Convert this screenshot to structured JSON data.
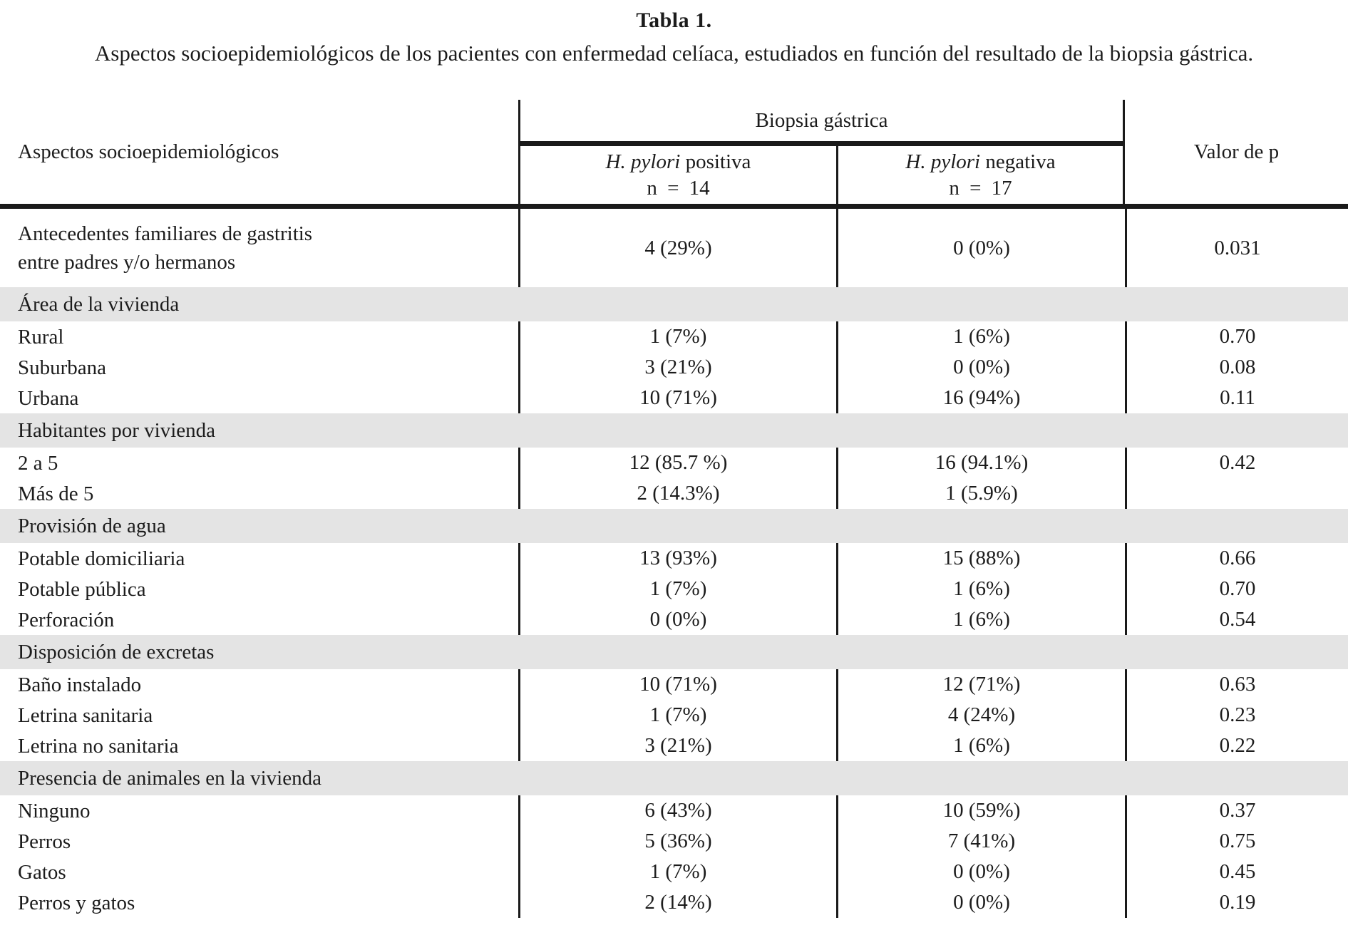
{
  "caption": {
    "title": "Tabla 1.",
    "subtitle": "Aspectos socioepidemiológicos de los pacientes con enfermedad celíaca, estudiados en función del resultado de la biopsia gástrica."
  },
  "table": {
    "stub_header": "Aspectos socioepidemiológicos",
    "group_header": "Biopsia gástrica",
    "p_header": "Valor de p",
    "subcolumns": [
      {
        "italic": "H. pylori",
        "rest": " positiva",
        "n": "n = 14"
      },
      {
        "italic": "H. pylori",
        "rest": " negativa",
        "n": "n = 17"
      }
    ],
    "sections": [
      {
        "header": "",
        "rows": [
          {
            "label": "Antecedentes familiares de gastritis\nentre padres y/o hermanos",
            "pos": "4 (29%)",
            "neg": "0 (0%)",
            "p": "0.031",
            "tall": true
          }
        ]
      },
      {
        "header": "Área de la vivienda",
        "rows": [
          {
            "label": "Rural",
            "pos": "1 (7%)",
            "neg": "1 (6%)",
            "p": "0.70"
          },
          {
            "label": "Suburbana",
            "pos": "3 (21%)",
            "neg": "0 (0%)",
            "p": "0.08"
          },
          {
            "label": "Urbana",
            "pos": "10 (71%)",
            "neg": "16 (94%)",
            "p": "0.11"
          }
        ]
      },
      {
        "header": "Habitantes por vivienda",
        "rows": [
          {
            "label": "2 a 5",
            "pos": "12 (85.7 %)",
            "neg": "16 (94.1%)",
            "p": "0.42"
          },
          {
            "label": "Más de 5",
            "pos": "2 (14.3%)",
            "neg": "1 (5.9%)",
            "p": ""
          }
        ]
      },
      {
        "header": "Provisión de agua",
        "rows": [
          {
            "label": "Potable domiciliaria",
            "pos": "13 (93%)",
            "neg": "15 (88%)",
            "p": "0.66"
          },
          {
            "label": "Potable pública",
            "pos": "1 (7%)",
            "neg": "1 (6%)",
            "p": "0.70"
          },
          {
            "label": "Perforación",
            "pos": "0 (0%)",
            "neg": "1 (6%)",
            "p": "0.54"
          }
        ]
      },
      {
        "header": "Disposición de excretas",
        "rows": [
          {
            "label": "Baño instalado",
            "pos": "10 (71%)",
            "neg": "12 (71%)",
            "p": "0.63"
          },
          {
            "label": "Letrina sanitaria",
            "pos": "1 (7%)",
            "neg": "4 (24%)",
            "p": "0.23"
          },
          {
            "label": "Letrina no sanitaria",
            "pos": "3 (21%)",
            "neg": "1 (6%)",
            "p": "0.22"
          }
        ]
      },
      {
        "header": "Presencia de animales en la vivienda",
        "rows": [
          {
            "label": "Ninguno",
            "pos": "6 (43%)",
            "neg": "10 (59%)",
            "p": "0.37"
          },
          {
            "label": "Perros",
            "pos": "5 (36%)",
            "neg": "7 (41%)",
            "p": "0.75"
          },
          {
            "label": "Gatos",
            "pos": "1 (7%)",
            "neg": "0 (0%)",
            "p": "0.45"
          },
          {
            "label": "Perros y gatos",
            "pos": "2 (14%)",
            "neg": "0 (0%)",
            "p": "0.19"
          }
        ]
      }
    ]
  },
  "colors": {
    "band_background": "#e4e4e4",
    "rule": "#1a1a1a",
    "text": "#1c1c1c",
    "page_background": "#ffffff"
  }
}
